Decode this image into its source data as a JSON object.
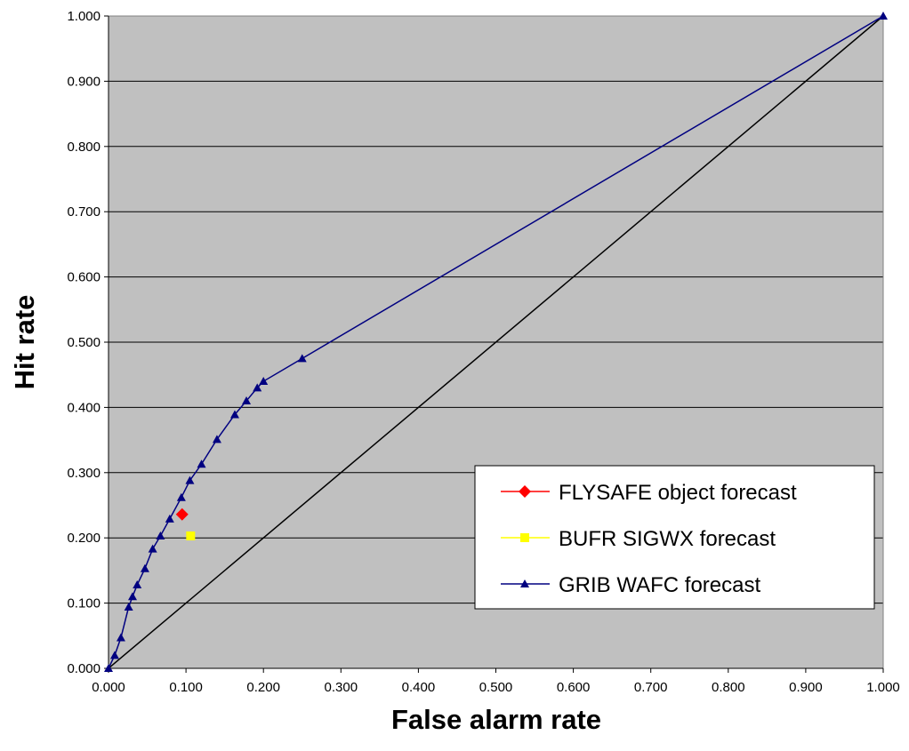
{
  "chart_data": {
    "type": "scatter",
    "xlabel": "False alarm rate",
    "ylabel": "Hit rate",
    "xlim": [
      0,
      1
    ],
    "ylim": [
      0,
      1
    ],
    "xticks": [
      "0.000",
      "0.100",
      "0.200",
      "0.300",
      "0.400",
      "0.500",
      "0.600",
      "0.700",
      "0.800",
      "0.900",
      "1.000"
    ],
    "yticks": [
      "0.000",
      "0.100",
      "0.200",
      "0.300",
      "0.400",
      "0.500",
      "0.600",
      "0.700",
      "0.800",
      "0.900",
      "1.000"
    ],
    "grid": "horizontal",
    "plot_background": "#c0c0c0",
    "legend_position": "lower-right",
    "reference_line": {
      "x": [
        0,
        1
      ],
      "y": [
        0,
        1
      ],
      "color": "#000000"
    },
    "series": [
      {
        "name": "FLYSAFE object forecast",
        "marker": "diamond",
        "color": "#ff0000",
        "points": [
          [
            0.095,
            0.236
          ]
        ]
      },
      {
        "name": "BUFR SIGWX forecast",
        "marker": "square",
        "color": "#ffff00",
        "points": [
          [
            0.106,
            0.203
          ]
        ]
      },
      {
        "name": "GRIB WAFC forecast",
        "marker": "triangle",
        "color": "#000080",
        "line": true,
        "points": [
          [
            0.0,
            0.0
          ],
          [
            0.008,
            0.02
          ],
          [
            0.016,
            0.047
          ],
          [
            0.026,
            0.094
          ],
          [
            0.031,
            0.11
          ],
          [
            0.037,
            0.128
          ],
          [
            0.047,
            0.153
          ],
          [
            0.057,
            0.183
          ],
          [
            0.067,
            0.203
          ],
          [
            0.079,
            0.229
          ],
          [
            0.094,
            0.262
          ],
          [
            0.105,
            0.288
          ],
          [
            0.12,
            0.313
          ],
          [
            0.14,
            0.351
          ],
          [
            0.163,
            0.389
          ],
          [
            0.178,
            0.41
          ],
          [
            0.192,
            0.43
          ],
          [
            0.2,
            0.44
          ],
          [
            0.25,
            0.475
          ],
          [
            1.0,
            1.0
          ]
        ]
      }
    ]
  }
}
